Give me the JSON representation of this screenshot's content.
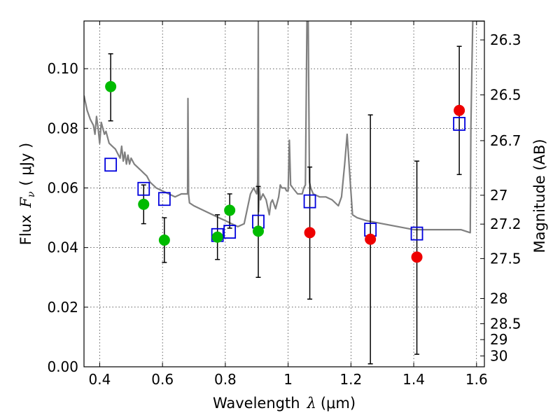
{
  "chart_data": {
    "type": "scatter",
    "xlabel": {
      "prefix": "Wavelength",
      "symbol": "λ",
      "unit": "(μm)"
    },
    "ylabel": {
      "prefix": "Flux",
      "symbol": "F",
      "subscript": "ν",
      "unit": "( μJy )"
    },
    "y2label": "Magnitude (AB)",
    "xlim": [
      0.35,
      1.625
    ],
    "ylim": [
      0.0,
      0.116
    ],
    "grid": true,
    "x_ticks": [
      {
        "value": 0.4,
        "label": "0.4"
      },
      {
        "value": 0.6,
        "label": "0.6"
      },
      {
        "value": 0.8,
        "label": "0.8"
      },
      {
        "value": 1.0,
        "label": "1"
      },
      {
        "value": 1.2,
        "label": "1.2"
      },
      {
        "value": 1.4,
        "label": "1.4"
      },
      {
        "value": 1.6,
        "label": "1.6"
      }
    ],
    "y_ticks": [
      {
        "value": 0.0,
        "label": "0.00"
      },
      {
        "value": 0.02,
        "label": "0.02"
      },
      {
        "value": 0.04,
        "label": "0.04"
      },
      {
        "value": 0.06,
        "label": "0.06"
      },
      {
        "value": 0.08,
        "label": "0.08"
      },
      {
        "value": 0.1,
        "label": "0.10"
      }
    ],
    "mag_ticks": [
      {
        "value": 26.3,
        "label": "26.3"
      },
      {
        "value": 26.5,
        "label": "26.5"
      },
      {
        "value": 26.7,
        "label": "26.7"
      },
      {
        "value": 27.0,
        "label": "27"
      },
      {
        "value": 27.2,
        "label": "27.2"
      },
      {
        "value": 27.5,
        "label": "27.5"
      },
      {
        "value": 28.0,
        "label": "28"
      },
      {
        "value": 28.5,
        "label": "28.5"
      },
      {
        "value": 29.0,
        "label": "29"
      },
      {
        "value": 30.0,
        "label": "30"
      }
    ],
    "series": [
      {
        "name": "green-photometry",
        "marker": "circle",
        "color": "#00bb00",
        "points": [
          {
            "x": 0.435,
            "y": 0.094,
            "ylo": 0.0825,
            "yhi": 0.105
          },
          {
            "x": 0.54,
            "y": 0.0545,
            "ylo": 0.048,
            "yhi": 0.061
          },
          {
            "x": 0.606,
            "y": 0.0425,
            "ylo": 0.035,
            "yhi": 0.05
          },
          {
            "x": 0.775,
            "y": 0.0435,
            "ylo": 0.036,
            "yhi": 0.051
          },
          {
            "x": 0.814,
            "y": 0.0525,
            "ylo": 0.0465,
            "yhi": 0.058
          },
          {
            "x": 0.905,
            "y": 0.0455,
            "ylo": 0.03,
            "yhi": 0.0605
          }
        ]
      },
      {
        "name": "red-photometry",
        "marker": "circle",
        "color": "#ee0000",
        "points": [
          {
            "x": 1.069,
            "y": 0.045,
            "ylo": 0.0227,
            "yhi": 0.067
          },
          {
            "x": 1.262,
            "y": 0.0428,
            "ylo": 0.001,
            "yhi": 0.0845
          },
          {
            "x": 1.41,
            "y": 0.0368,
            "ylo": 0.0042,
            "yhi": 0.069
          },
          {
            "x": 1.545,
            "y": 0.086,
            "ylo": 0.0645,
            "yhi": 0.1075
          }
        ]
      },
      {
        "name": "model-synthetic",
        "marker": "open-square",
        "color": "#0000dd",
        "points": [
          {
            "x": 0.435,
            "y": 0.0678
          },
          {
            "x": 0.54,
            "y": 0.0597
          },
          {
            "x": 0.606,
            "y": 0.0563
          },
          {
            "x": 0.775,
            "y": 0.0442
          },
          {
            "x": 0.814,
            "y": 0.0453
          },
          {
            "x": 0.905,
            "y": 0.0487
          },
          {
            "x": 1.069,
            "y": 0.0555
          },
          {
            "x": 1.262,
            "y": 0.046
          },
          {
            "x": 1.41,
            "y": 0.0447
          },
          {
            "x": 1.545,
            "y": 0.0815
          }
        ]
      },
      {
        "name": "model-spectrum",
        "marker": "line",
        "color": "#808080",
        "x": [
          0.35,
          0.36,
          0.37,
          0.38,
          0.385,
          0.39,
          0.395,
          0.4,
          0.405,
          0.41,
          0.415,
          0.42,
          0.43,
          0.44,
          0.45,
          0.46,
          0.465,
          0.47,
          0.475,
          0.48,
          0.485,
          0.49,
          0.495,
          0.5,
          0.51,
          0.52,
          0.53,
          0.54,
          0.55,
          0.56,
          0.58,
          0.6,
          0.62,
          0.64,
          0.66,
          0.68,
          0.681,
          0.683,
          0.684,
          0.686,
          0.7,
          0.74,
          0.78,
          0.8,
          0.82,
          0.84,
          0.86,
          0.88,
          0.89,
          0.9,
          0.903,
          0.905,
          0.906,
          0.908,
          0.912,
          0.92,
          0.93,
          0.94,
          0.945,
          0.95,
          0.96,
          0.97,
          0.975,
          0.98,
          0.99,
          0.995,
          1.0,
          1.004,
          1.008,
          1.015,
          1.03,
          1.045,
          1.05,
          1.055,
          1.06,
          1.064,
          1.068,
          1.072,
          1.08,
          1.1,
          1.12,
          1.14,
          1.16,
          1.17,
          1.18,
          1.188,
          1.196,
          1.205,
          1.22,
          1.25,
          1.3,
          1.35,
          1.4,
          1.45,
          1.5,
          1.55,
          1.58,
          1.582,
          1.585,
          1.588,
          1.59,
          1.625
        ],
        "y": [
          0.091,
          0.086,
          0.083,
          0.081,
          0.078,
          0.084,
          0.08,
          0.075,
          0.082,
          0.08,
          0.078,
          0.079,
          0.075,
          0.074,
          0.073,
          0.071,
          0.07,
          0.074,
          0.069,
          0.072,
          0.068,
          0.071,
          0.068,
          0.07,
          0.068,
          0.067,
          0.066,
          0.065,
          0.064,
          0.062,
          0.06,
          0.059,
          0.058,
          0.057,
          0.058,
          0.058,
          0.09,
          0.058,
          0.057,
          0.055,
          0.054,
          0.052,
          0.05,
          0.049,
          0.048,
          0.047,
          0.048,
          0.058,
          0.06,
          0.058,
          0.062,
          0.116,
          0.052,
          0.06,
          0.056,
          0.058,
          0.056,
          0.051,
          0.055,
          0.056,
          0.053,
          0.057,
          0.061,
          0.06,
          0.06,
          0.059,
          0.059,
          0.076,
          0.061,
          0.06,
          0.058,
          0.058,
          0.06,
          0.061,
          0.116,
          0.116,
          0.062,
          0.06,
          0.058,
          0.057,
          0.057,
          0.056,
          0.054,
          0.057,
          0.068,
          0.078,
          0.065,
          0.051,
          0.05,
          0.049,
          0.048,
          0.047,
          0.046,
          0.046,
          0.046,
          0.046,
          0.045,
          0.08,
          0.1,
          0.116,
          0.116,
          0.116
        ]
      }
    ]
  }
}
